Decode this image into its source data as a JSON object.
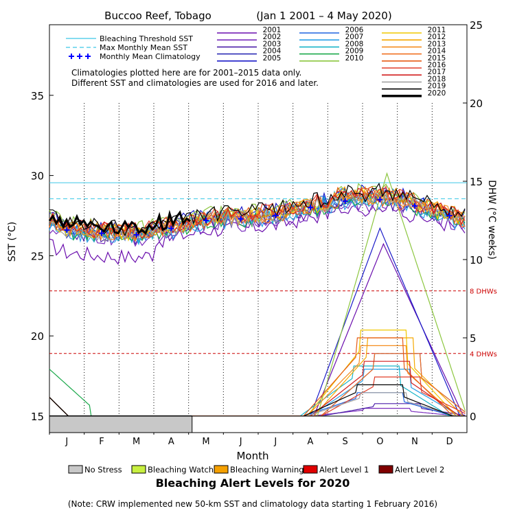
{
  "chart_data": {
    "type": "line",
    "title": "Buccoo Reef, Tobago",
    "date_range": "(Jan 1 2001 – 4 May 2020)",
    "xlabel": "Month",
    "ylabel_left": "SST (°C)",
    "ylabel_right": "DHW (°C weeks)",
    "month_ticks": [
      "J",
      "F",
      "M",
      "A",
      "M",
      "J",
      "J",
      "A",
      "S",
      "O",
      "N",
      "D"
    ],
    "sst_axis": {
      "min": 15,
      "max": 39.4,
      "ticks": [
        15,
        20,
        25,
        30,
        35
      ]
    },
    "dhw_axis": {
      "min": 0,
      "max": 25,
      "ticks": [
        0,
        5,
        10,
        15,
        20,
        25
      ]
    },
    "bleaching_threshold_sst": 29.55,
    "max_monthly_mean_sst": 28.55,
    "monthly_mean_climatology": [
      26.6,
      26.4,
      26.3,
      26.7,
      27.2,
      27.3,
      27.5,
      28.0,
      28.4,
      28.5,
      28.1,
      27.5
    ],
    "dhw_reference_lines": [
      {
        "value": 8,
        "label": "8 DHWs",
        "color": "#cc0000"
      },
      {
        "value": 4,
        "label": "4 DHWs",
        "color": "#cc0000"
      }
    ],
    "legend_lines": {
      "threshold": "Bleaching Threshold SST",
      "mmm": "Max Monthly Mean SST",
      "clim": "Monthly Mean Climatology"
    },
    "note_lines": [
      "Climatologies plotted here are for 2001–2015 data only.",
      "Different SST and climatologies are used for 2016 and later."
    ],
    "series": [
      {
        "name": "2001",
        "color": "#6a0dad",
        "dhw_peak": 11.0,
        "dhw_peak_month": 9.6,
        "sst_offset": -0.6
      },
      {
        "name": "2002",
        "color": "#7b2fbe",
        "dhw_peak": 0.5,
        "dhw_peak_month": 9.5,
        "sst_offset": -0.3
      },
      {
        "name": "2003",
        "color": "#4b1fa8",
        "dhw_peak": 0.8,
        "dhw_peak_month": 9.8,
        "sst_offset": -0.1
      },
      {
        "name": "2004",
        "color": "#2b2bb5",
        "dhw_peak": 4.0,
        "dhw_peak_month": 9.8,
        "sst_offset": 0.0
      },
      {
        "name": "2005",
        "color": "#1a1ac8",
        "dhw_peak": 12.0,
        "dhw_peak_month": 9.5,
        "sst_offset": 0.3
      },
      {
        "name": "2006",
        "color": "#1e64e0",
        "dhw_peak": 1.5,
        "dhw_peak_month": 9.3,
        "sst_offset": 0.1
      },
      {
        "name": "2007",
        "color": "#2aa0e8",
        "dhw_peak": 3.0,
        "dhw_peak_month": 9.5,
        "sst_offset": -0.2
      },
      {
        "name": "2008",
        "color": "#17b4c8",
        "dhw_peak": 3.2,
        "dhw_peak_month": 9.2,
        "sst_offset": 0.0
      },
      {
        "name": "2009",
        "color": "#1aa84a",
        "dhw_peak": 0.0,
        "dhw_peak_month": 9.0,
        "sst_offset": -0.1,
        "early_dhw": 3.0
      },
      {
        "name": "2010",
        "color": "#8cc63f",
        "dhw_peak": 15.5,
        "dhw_peak_month": 9.7,
        "sst_offset": 0.4
      },
      {
        "name": "2011",
        "color": "#f0c800",
        "dhw_peak": 5.5,
        "dhw_peak_month": 9.4,
        "sst_offset": 0.1
      },
      {
        "name": "2012",
        "color": "#f5a800",
        "dhw_peak": 5.0,
        "dhw_peak_month": 9.6,
        "sst_offset": 0.2
      },
      {
        "name": "2013",
        "color": "#f58c1e",
        "dhw_peak": 4.5,
        "dhw_peak_month": 9.4,
        "sst_offset": 0.1
      },
      {
        "name": "2014",
        "color": "#f07020",
        "dhw_peak": 4.0,
        "dhw_peak_month": 9.8,
        "sst_offset": 0.0
      },
      {
        "name": "2015",
        "color": "#e65a14",
        "dhw_peak": 5.0,
        "dhw_peak_month": 9.3,
        "sst_offset": 0.2
      },
      {
        "name": "2016",
        "color": "#e03c28",
        "dhw_peak": 2.5,
        "dhw_peak_month": 9.8,
        "sst_offset": 0.3
      },
      {
        "name": "2017",
        "color": "#d21e1e",
        "dhw_peak": 3.5,
        "dhw_peak_month": 9.5,
        "sst_offset": 0.2
      },
      {
        "name": "2018",
        "color": "#a0a0a0",
        "dhw_peak": 1.5,
        "dhw_peak_month": 9.4,
        "sst_offset": 0.0
      },
      {
        "name": "2019",
        "color": "#000000",
        "dhw_peak": 2.0,
        "dhw_peak_month": 9.3,
        "sst_offset": 0.4
      },
      {
        "name": "2020",
        "color": "#000000",
        "dhw_peak": 0.0,
        "dhw_peak_month": 0,
        "sst_offset": 0.5,
        "partial_until_month": 4.1,
        "bold": true
      }
    ],
    "alert_bar_2020": [
      {
        "level": "No Stress",
        "from_month": 0,
        "to_month": 4.1
      }
    ],
    "alert_legend": [
      {
        "label": "No Stress",
        "color": "#c8c8c8"
      },
      {
        "label": "Bleaching Watch",
        "color": "#c8f040"
      },
      {
        "label": "Bleaching Warning",
        "color": "#f5a000"
      },
      {
        "label": "Alert Level 1",
        "color": "#e00000"
      },
      {
        "label": "Alert Level 2",
        "color": "#800000"
      }
    ],
    "alert_title": "Bleaching Alert Levels for 2020",
    "footnote": "(Note: CRW implemented new 50-km SST and climatology data starting 1 February 2016)"
  }
}
